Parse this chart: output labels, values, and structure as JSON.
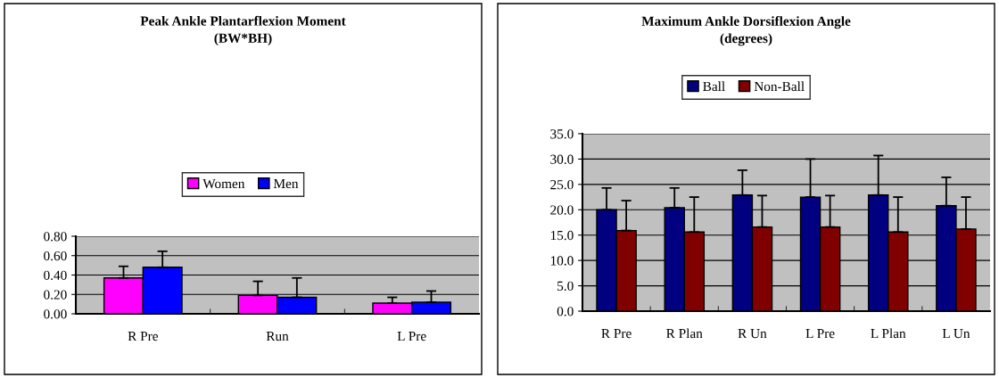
{
  "chart_data": [
    {
      "type": "bar",
      "title": "Peak Ankle Plantarflexion Moment\n(BW*BH)",
      "categories": [
        "R Pre",
        "Run",
        "L Pre"
      ],
      "series": [
        {
          "name": "Women",
          "color": "#ff00ff",
          "values": [
            0.37,
            0.19,
            0.11
          ],
          "errors": [
            [
              0.37,
              0.49
            ],
            [
              0.19,
              0.335
            ],
            [
              0.11,
              0.17
            ]
          ]
        },
        {
          "name": "Men",
          "color": "#0000ff",
          "values": [
            0.48,
            0.17,
            0.12
          ],
          "errors": [
            [
              0.48,
              0.645
            ],
            [
              0.17,
              0.37
            ],
            [
              0.12,
              0.235
            ]
          ]
        }
      ],
      "ylim": [
        0,
        0.8
      ],
      "yticks": [
        {
          "value": 0,
          "label": "0.00"
        },
        {
          "value": 0.2,
          "label": "0.20"
        },
        {
          "value": 0.4,
          "label": "0.40"
        },
        {
          "value": 0.6,
          "label": "0.60"
        },
        {
          "value": 0.8,
          "label": "0.80"
        }
      ],
      "grid": "y",
      "legend": "top"
    },
    {
      "type": "bar",
      "title": "Maximum Ankle Dorsiflexion Angle\n(degrees)",
      "categories": [
        "R Pre",
        "R Plan",
        "R Un",
        "L Pre",
        "L Plan",
        "L Un"
      ],
      "series": [
        {
          "name": "Ball",
          "color": "#000080",
          "values": [
            20.0,
            20.4,
            22.9,
            22.5,
            22.9,
            20.8
          ],
          "errors": [
            [
              20.0,
              24.3
            ],
            [
              20.4,
              24.3
            ],
            [
              22.9,
              27.8
            ],
            [
              22.5,
              30.0
            ],
            [
              22.9,
              30.7
            ],
            [
              20.8,
              26.4
            ]
          ]
        },
        {
          "name": "Non-Ball",
          "color": "#800000",
          "values": [
            15.9,
            15.6,
            16.6,
            16.6,
            15.6,
            16.2
          ],
          "errors": [
            [
              15.9,
              21.8
            ],
            [
              15.6,
              22.5
            ],
            [
              16.6,
              22.8
            ],
            [
              16.6,
              22.8
            ],
            [
              15.6,
              22.5
            ],
            [
              16.2,
              22.5
            ]
          ]
        }
      ],
      "ylim": [
        0,
        35
      ],
      "yticks": [
        {
          "value": 0,
          "label": "0.0"
        },
        {
          "value": 5,
          "label": "5.0"
        },
        {
          "value": 10,
          "label": "10.0"
        },
        {
          "value": 15,
          "label": "15.0"
        },
        {
          "value": 20,
          "label": "20.0"
        },
        {
          "value": 25,
          "label": "25.0"
        },
        {
          "value": 30,
          "label": "30.0"
        },
        {
          "value": 35,
          "label": "35.0"
        }
      ],
      "grid": "y",
      "legend": "top"
    }
  ]
}
